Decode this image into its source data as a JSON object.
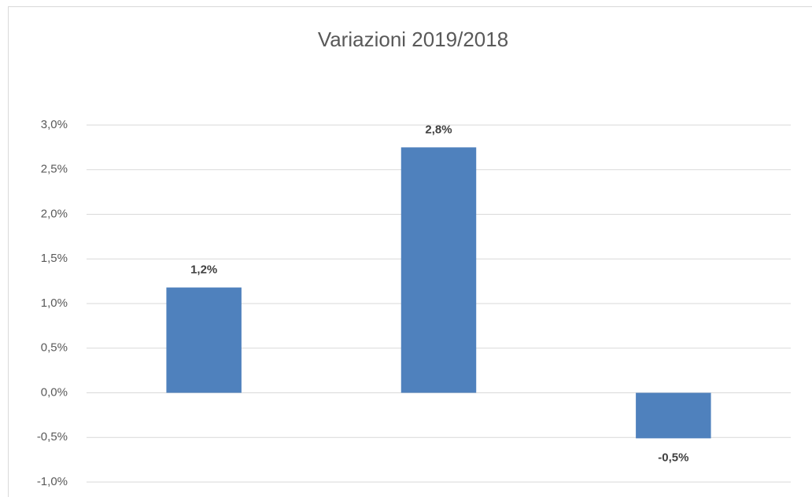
{
  "chart_data": {
    "type": "bar",
    "title": "Variazioni 2019/2018",
    "categories": [
      null,
      null,
      null
    ],
    "values": [
      1.18,
      2.75,
      -0.51
    ],
    "value_labels": [
      "1,2%",
      "2,8%",
      "-0,5%"
    ],
    "color": "#4f81bd",
    "ylim": [
      -1,
      3
    ],
    "yticks": [
      {
        "value": -1,
        "label": "-1,0%"
      },
      {
        "value": -0.5,
        "label": "-0,5%"
      },
      {
        "value": 0,
        "label": "0,0%"
      },
      {
        "value": 0.5,
        "label": "0,5%"
      },
      {
        "value": 1,
        "label": "1,0%"
      },
      {
        "value": 1.5,
        "label": "1,5%"
      },
      {
        "value": 2,
        "label": "2,0%"
      },
      {
        "value": 2.5,
        "label": "2,5%"
      },
      {
        "value": 3,
        "label": "3,0%"
      }
    ],
    "grid": true
  }
}
